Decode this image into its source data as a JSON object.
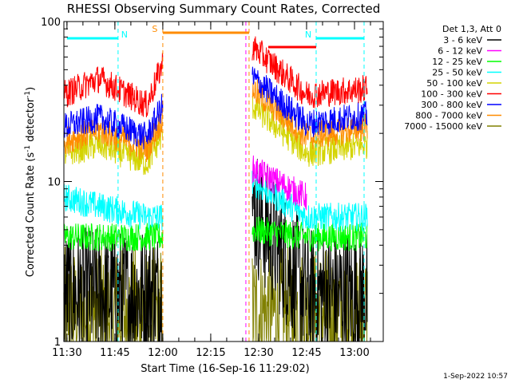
{
  "chart_data": {
    "type": "line",
    "title": "RHESSI Observing Summary Count Rates, Corrected",
    "xlabel": "Start Time (16-Sep-16 11:29:02)",
    "ylabel": "Corrected Count Rate (s⁻¹ detector⁻¹)",
    "ylabel_parts": {
      "main": "Corrected Count Rate (s",
      "sup1": "-1",
      "mid": " detector",
      "sup2": "-1",
      "end": ")"
    },
    "yscale": "log",
    "ylim": [
      1,
      100
    ],
    "xlim": [
      "11:29:02",
      "13:09:00"
    ],
    "x_ticks": [
      "11:30",
      "11:45",
      "12:00",
      "12:15",
      "12:30",
      "12:45",
      "13:00"
    ],
    "y_ticks": [
      "1",
      "10",
      "100"
    ],
    "footer": "1-Sep-2022 10:57",
    "legend": {
      "header": "Det 1,3, Att 0",
      "placement": "right",
      "entries": [
        {
          "name": "3 - 6 keV",
          "color": "#000000"
        },
        {
          "name": "6 - 12 keV",
          "color": "#ff00ff"
        },
        {
          "name": "12 - 25 keV",
          "color": "#00ff00"
        },
        {
          "name": "25 - 50 keV",
          "color": "#00ffff"
        },
        {
          "name": "50 - 100 keV",
          "color": "#d4d400"
        },
        {
          "name": "100 - 300 keV",
          "color": "#ff0000"
        },
        {
          "name": "300 - 800 keV",
          "color": "#0000ff"
        },
        {
          "name": "800 - 7000 keV",
          "color": "#ff8c00"
        },
        {
          "name": "7000 - 15000 keV",
          "color": "#808000"
        }
      ]
    },
    "flags": [
      {
        "label": "N",
        "color": "#00ffff",
        "start": "11:30",
        "end": "11:46"
      },
      {
        "label": "N",
        "color": "#00ffff",
        "start": "12:48",
        "end": "13:03"
      },
      {
        "label": "S",
        "color": "#ff8c00",
        "start": "12:00",
        "end": "12:27"
      },
      {
        "label": "",
        "color": "#ff0000",
        "start": "12:33",
        "end": "12:48"
      }
    ],
    "vertical_markers": [
      {
        "time": "11:46",
        "color": "#00ffff"
      },
      {
        "time": "12:00",
        "color": "#ff8c00"
      },
      {
        "time": "12:27",
        "color": "#ff8c00"
      },
      {
        "time": "12:26",
        "color": "#ff00ff"
      },
      {
        "time": "12:48",
        "color": "#00ffff"
      },
      {
        "time": "13:03",
        "color": "#00ffff"
      }
    ],
    "segments": [
      {
        "start": "11:29",
        "end": "12:00"
      },
      {
        "start": "12:28",
        "end": "13:04"
      }
    ],
    "series": [
      {
        "name": "100 - 300 keV",
        "color": "#ff0000",
        "x": [
          "11:29",
          "11:40",
          "11:55",
          "12:00",
          "12:28",
          "12:45",
          "13:04"
        ],
        "y": [
          35,
          44,
          30,
          55,
          70,
          35,
          38
        ]
      },
      {
        "name": "300 - 800 keV",
        "color": "#0000ff",
        "x": [
          "11:29",
          "11:40",
          "11:55",
          "12:00",
          "12:28",
          "12:45",
          "13:04"
        ],
        "y": [
          22,
          25,
          19,
          30,
          45,
          23,
          26
        ]
      },
      {
        "name": "800 - 7000 keV",
        "color": "#ff8c00",
        "x": [
          "11:29",
          "11:40",
          "11:55",
          "12:00",
          "12:28",
          "12:45",
          "13:04"
        ],
        "y": [
          18,
          21,
          16,
          25,
          38,
          19,
          22
        ]
      },
      {
        "name": "50 - 100 keV",
        "color": "#d4d400",
        "x": [
          "11:29",
          "11:40",
          "11:55",
          "12:00",
          "12:28",
          "12:45",
          "13:04"
        ],
        "y": [
          15,
          17,
          13,
          20,
          30,
          15,
          17
        ]
      },
      {
        "name": "6 - 12 keV",
        "color": "#ff00ff",
        "x": [
          "12:28",
          "12:40",
          "12:45"
        ],
        "y": [
          12,
          9,
          8
        ]
      },
      {
        "name": "25 - 50 keV",
        "color": "#00ffff",
        "x": [
          "11:29",
          "11:40",
          "11:55",
          "12:00",
          "12:28",
          "12:45",
          "13:04"
        ],
        "y": [
          8,
          7,
          6,
          6,
          10,
          6,
          6
        ]
      },
      {
        "name": "12 - 25 keV",
        "color": "#00ff00",
        "x": [
          "11:29",
          "11:40",
          "11:55",
          "12:00",
          "12:28",
          "12:45",
          "13:04"
        ],
        "y": [
          4.5,
          4.5,
          4.5,
          4.5,
          5,
          4.5,
          4.5
        ]
      },
      {
        "name": "3 - 6 keV",
        "color": "#000000",
        "x": [
          "11:29",
          "11:40",
          "11:55",
          "12:00",
          "12:28",
          "12:45",
          "13:04"
        ],
        "y": [
          2,
          2,
          2,
          2,
          7,
          2,
          2
        ]
      },
      {
        "name": "7000 - 15000 keV",
        "color": "#808000",
        "x": [
          "11:29",
          "11:40",
          "11:55",
          "12:00",
          "12:28",
          "12:45",
          "13:04"
        ],
        "y": [
          1.5,
          1.5,
          1.5,
          1.5,
          1.5,
          1.5,
          1.5
        ]
      }
    ]
  }
}
